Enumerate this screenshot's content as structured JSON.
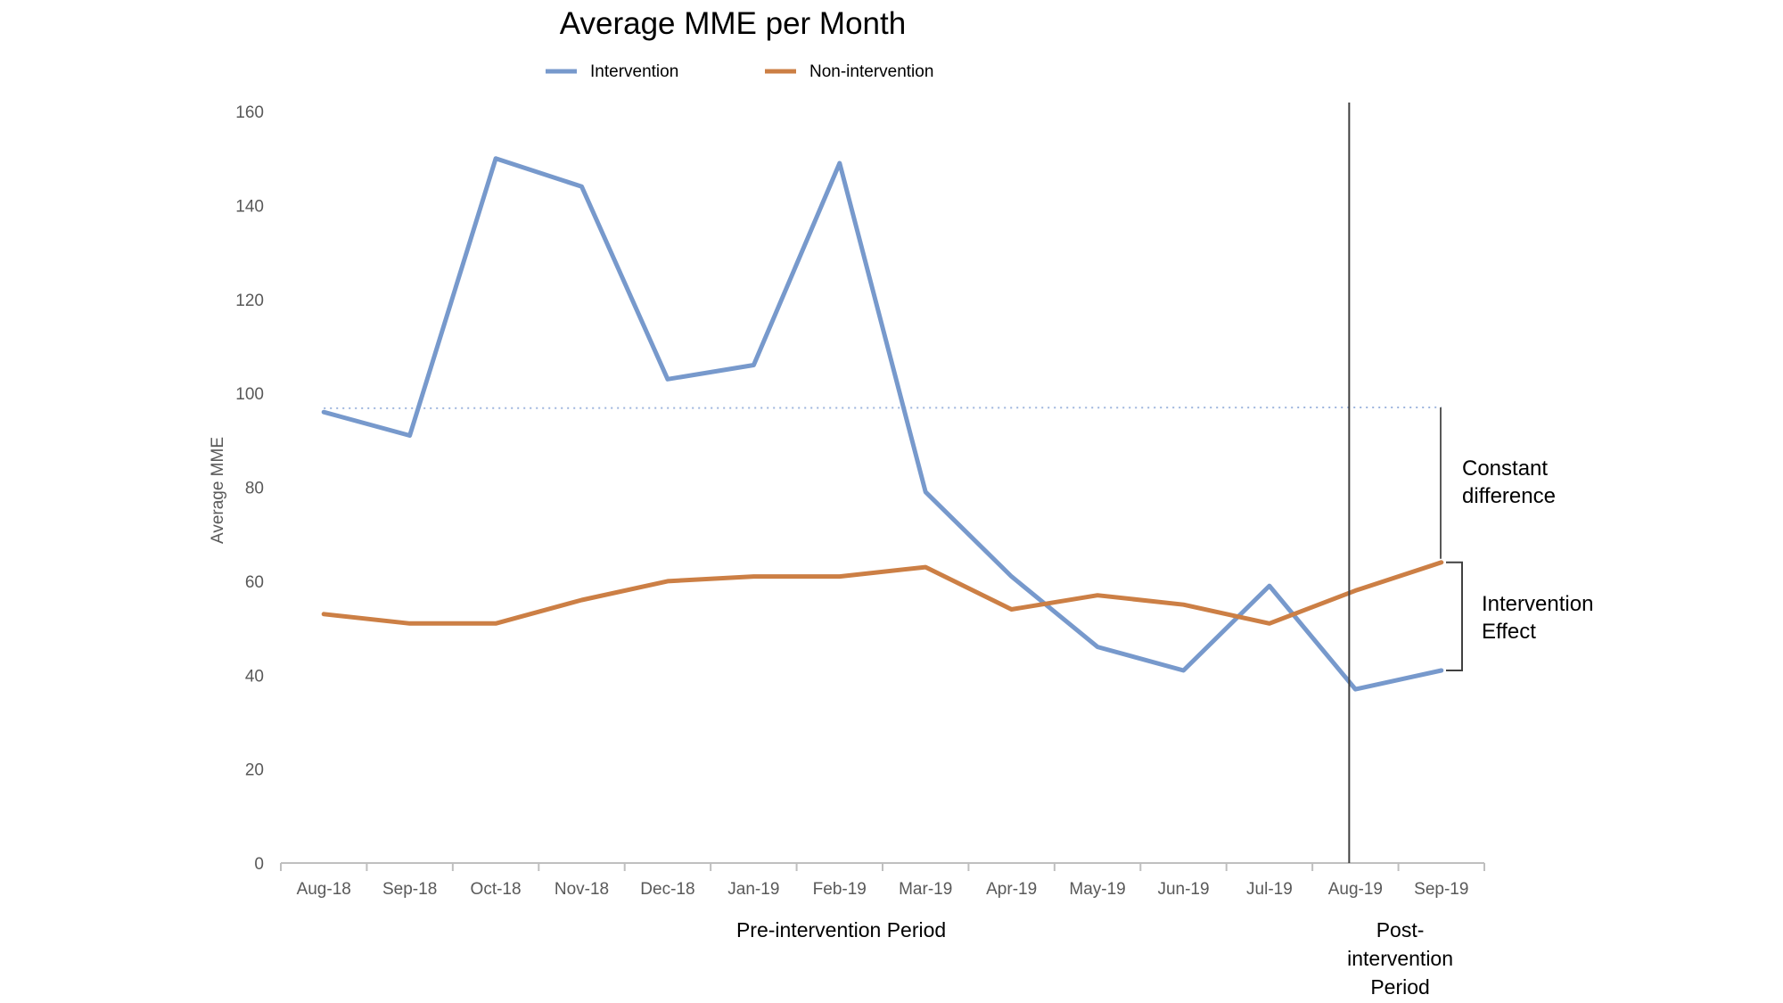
{
  "chart_data": {
    "type": "line",
    "title": "Average MME per Month",
    "xlabel": "",
    "ylabel": "Average MME",
    "ylim": [
      0,
      160
    ],
    "yticks": [
      0,
      20,
      40,
      60,
      80,
      100,
      120,
      140,
      160
    ],
    "categories": [
      "Aug-18",
      "Sep-18",
      "Oct-18",
      "Nov-18",
      "Dec-18",
      "Jan-19",
      "Feb-19",
      "Mar-19",
      "Apr-19",
      "May-19",
      "Jun-19",
      "Jul-19",
      "Aug-19",
      "Sep-19"
    ],
    "series": [
      {
        "name": "Intervention",
        "color": "#7799CC",
        "values": [
          96,
          91,
          150,
          144,
          103,
          106,
          149,
          79,
          61,
          46,
          41,
          59,
          37,
          41
        ]
      },
      {
        "name": "Non-intervention",
        "color": "#CC7F45",
        "values": [
          53,
          51,
          51,
          56,
          60,
          61,
          61,
          63,
          54,
          57,
          55,
          51,
          58,
          64
        ]
      }
    ],
    "reference_line": {
      "value": 97,
      "from_category": "Aug-18",
      "to_category": "Sep-19",
      "style": "dotted",
      "color": "#9DB5DD"
    },
    "divider": {
      "between": [
        "Jul-19",
        "Aug-19"
      ],
      "at_category": "Aug-19"
    },
    "legend_placement": "top-center",
    "periods": [
      {
        "lines": [
          "Pre-intervention Period"
        ]
      },
      {
        "lines": [
          "Post-",
          "intervention",
          "Period"
        ]
      }
    ],
    "annotations": [
      {
        "lines": [
          "Constant",
          "difference"
        ],
        "bracket_from": 97,
        "bracket_to": 64
      },
      {
        "lines": [
          "Intervention",
          "Effect"
        ],
        "bracket_from": 64,
        "bracket_to": 41
      }
    ]
  }
}
